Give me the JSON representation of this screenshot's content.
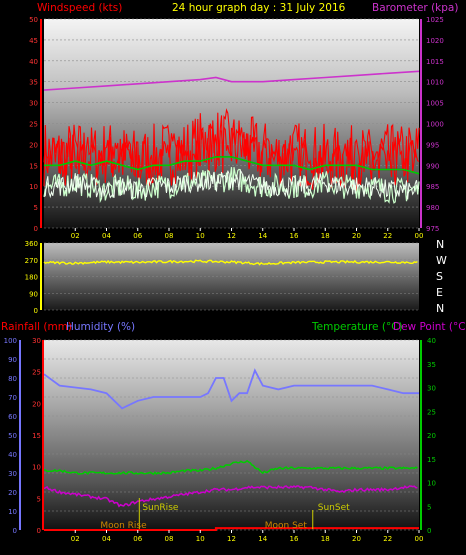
{
  "title": "24 hour graph day : 31 July 2016",
  "colors": {
    "wind_speed": "#ff0000",
    "wind_avg": "#00cc00",
    "gust_pale": "#ccffcc",
    "barometer": "#cc33cc",
    "direction": "#ffff00",
    "rainfall": "#ff0000",
    "humidity": "#7777ff",
    "temperature": "#00cc00",
    "dew_point": "#cc00cc",
    "sun": "#cccc00",
    "moon": "#cc8800"
  },
  "time_ticks": [
    "02",
    "04",
    "06",
    "08",
    "10",
    "12",
    "14",
    "16",
    "18",
    "20",
    "22",
    "00"
  ],
  "chart_data": [
    {
      "type": "line",
      "labels": {
        "left": "Windspeed (kts)",
        "right": "Barometer (kpa)"
      },
      "y_left": {
        "ticks": [
          0,
          5,
          10,
          15,
          20,
          25,
          30,
          35,
          40,
          45,
          50
        ],
        "range": [
          0,
          50
        ]
      },
      "y_right": {
        "ticks": [
          975,
          980,
          985,
          990,
          995,
          1000,
          1005,
          1010,
          1015,
          1020,
          1025
        ],
        "range": [
          975,
          1025
        ]
      },
      "series": [
        {
          "key": "wind_speed",
          "axis": "left",
          "x": [
            0,
            1,
            2,
            3,
            4,
            5,
            6,
            7,
            8,
            9,
            10,
            11,
            12,
            13,
            14,
            15,
            16,
            17,
            18,
            19,
            20,
            21,
            22,
            23,
            24
          ],
          "values": [
            18,
            17,
            18,
            17,
            18,
            17,
            16,
            17,
            18,
            18,
            20,
            21,
            20,
            19,
            18,
            17,
            18,
            17,
            17,
            16,
            17,
            16,
            17,
            17,
            18
          ]
        },
        {
          "key": "wind_avg",
          "axis": "left",
          "x": [
            0,
            1,
            2,
            3,
            4,
            5,
            6,
            7,
            8,
            9,
            10,
            11,
            12,
            13,
            14,
            15,
            16,
            17,
            18,
            19,
            20,
            21,
            22,
            23,
            24
          ],
          "values": [
            15,
            15,
            16,
            15,
            16,
            15,
            14,
            15,
            15,
            16,
            16,
            17,
            17,
            16,
            15,
            15,
            15,
            14,
            15,
            15,
            15,
            14,
            14,
            14,
            13
          ]
        },
        {
          "key": "wind_min",
          "axis": "left",
          "x": [
            0,
            1,
            2,
            3,
            4,
            5,
            6,
            7,
            8,
            9,
            10,
            11,
            12,
            13,
            14,
            15,
            16,
            17,
            18,
            19,
            20,
            21,
            22,
            23,
            24
          ],
          "values": [
            10,
            10,
            11,
            10,
            9,
            10,
            9,
            10,
            10,
            11,
            11,
            11,
            12,
            11,
            10,
            10,
            10,
            10,
            11,
            10,
            10,
            10,
            9,
            9,
            9
          ]
        },
        {
          "key": "barometer",
          "axis": "right",
          "x": [
            0,
            2,
            4,
            6,
            8,
            10,
            11,
            12,
            14,
            16,
            18,
            20,
            22,
            24
          ],
          "values": [
            1008,
            1008.5,
            1009,
            1009.5,
            1010,
            1010.5,
            1011,
            1010,
            1010,
            1010.5,
            1011,
            1011.5,
            1012,
            1012.5
          ]
        }
      ]
    },
    {
      "type": "line",
      "y_left": {
        "ticks": [
          0,
          90,
          180,
          270,
          360
        ],
        "range": [
          0,
          360
        ]
      },
      "y_right_labels": [
        "N",
        "W",
        "S",
        "E",
        "N"
      ],
      "series": [
        {
          "key": "direction",
          "x": [
            0,
            2,
            4,
            6,
            8,
            10,
            12,
            14,
            16,
            18,
            20,
            22,
            24
          ],
          "values": [
            255,
            252,
            258,
            256,
            260,
            262,
            258,
            248,
            255,
            258,
            258,
            258,
            255
          ]
        }
      ]
    },
    {
      "type": "line",
      "labels": {
        "rain": "Rainfall (mm)",
        "humidity": "Humidity (%)",
        "temp": "Temperature (°C)",
        "dew": "Dew Point (°C)"
      },
      "y_humidity": {
        "ticks": [
          0,
          10,
          20,
          30,
          40,
          50,
          60,
          70,
          80,
          90,
          100
        ],
        "range": [
          0,
          100
        ]
      },
      "y_rain": {
        "ticks": [
          0,
          5,
          10,
          15,
          20,
          25,
          30
        ],
        "range": [
          0,
          30
        ]
      },
      "y_temp": {
        "ticks": [
          0,
          5,
          10,
          15,
          20,
          25,
          30,
          35,
          40
        ],
        "range": [
          0,
          40
        ]
      },
      "series": [
        {
          "key": "humidity",
          "x": [
            0,
            1,
            2,
            3,
            4,
            5,
            6,
            7,
            8,
            9,
            10,
            10.5,
            11,
            11.5,
            12,
            12.5,
            13,
            13.5,
            14,
            15,
            16,
            17,
            18,
            19,
            20,
            21,
            22,
            23,
            24
          ],
          "values": [
            82,
            76,
            75,
            74,
            72,
            64,
            68,
            70,
            70,
            70,
            70,
            72,
            80,
            80,
            68,
            72,
            72,
            84,
            76,
            74,
            76,
            76,
            76,
            76,
            76,
            76,
            74,
            72,
            72
          ]
        },
        {
          "key": "temperature",
          "x": [
            0,
            1,
            2,
            3,
            4,
            5,
            6,
            7,
            8,
            9,
            10,
            11,
            12,
            13,
            14,
            15,
            16,
            17,
            18,
            19,
            20,
            21,
            22,
            23,
            24
          ],
          "values": [
            12.5,
            12.5,
            12,
            12,
            12,
            12,
            12,
            12,
            12,
            12.5,
            12.5,
            13,
            14,
            14.5,
            12,
            13,
            13,
            13,
            13,
            13,
            13,
            13,
            13,
            13,
            13
          ]
        },
        {
          "key": "dew_point",
          "x": [
            0,
            1,
            2,
            3,
            4,
            5,
            6,
            7,
            8,
            9,
            10,
            11,
            12,
            13,
            14,
            15,
            16,
            17,
            18,
            19,
            20,
            21,
            22,
            23,
            24
          ],
          "values": [
            9,
            8,
            7.5,
            7,
            6.5,
            5,
            6,
            6.5,
            7,
            7.5,
            8,
            8.5,
            8.5,
            9,
            9,
            9,
            9,
            9,
            8.5,
            8,
            8.5,
            8.5,
            8.5,
            9,
            9
          ]
        },
        {
          "key": "rainfall",
          "x": [
            0,
            11,
            11,
            24
          ],
          "values": [
            0,
            0,
            0.3,
            0.3
          ]
        }
      ],
      "events": [
        {
          "label": "SunRise",
          "x": 6.1
        },
        {
          "label": "SunSet",
          "x": 17.2
        },
        {
          "label": "Moon Rise",
          "x": 4.5
        },
        {
          "label": "Moon Set",
          "x": 14.0
        }
      ]
    }
  ]
}
